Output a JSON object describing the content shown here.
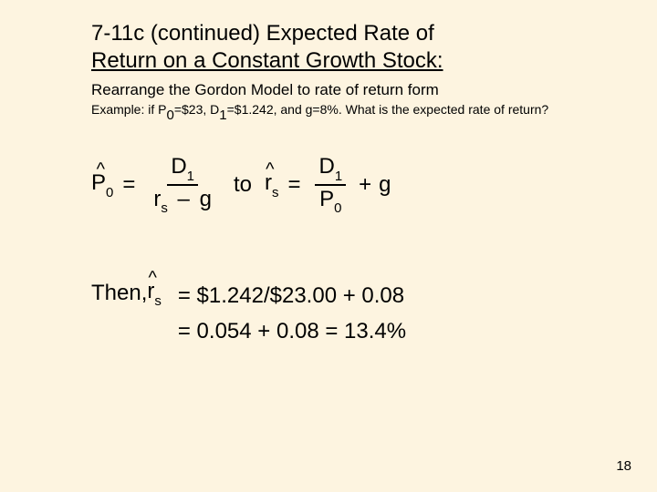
{
  "colors": {
    "background": "#fdf4e0",
    "text": "#000000"
  },
  "title": {
    "line1": "7-11c (continued) Expected Rate of",
    "line2": "Return on a Constant Growth Stock:"
  },
  "subtitle": "Rearrange the Gordon Model to rate of return form",
  "example": {
    "prefix": "Example: if P",
    "p_sub": "0",
    "p_val": "=$23, D",
    "d_sub": "1",
    "d_val": "=$1.242, and g=8%. What is the expected rate of return?"
  },
  "formula": {
    "hat": "^",
    "P": "P",
    "zero": "0",
    "eq": "=",
    "D": "D",
    "one": "1",
    "r": "r",
    "s": "s",
    "minus": "–",
    "g": "g",
    "to": "to",
    "plus": "+"
  },
  "then": {
    "label": "Then, ",
    "line1": "=  $1.242/$23.00 + 0.08",
    "line2": "=   0.054 + 0.08 = 13.4%"
  },
  "pageNumber": "18"
}
